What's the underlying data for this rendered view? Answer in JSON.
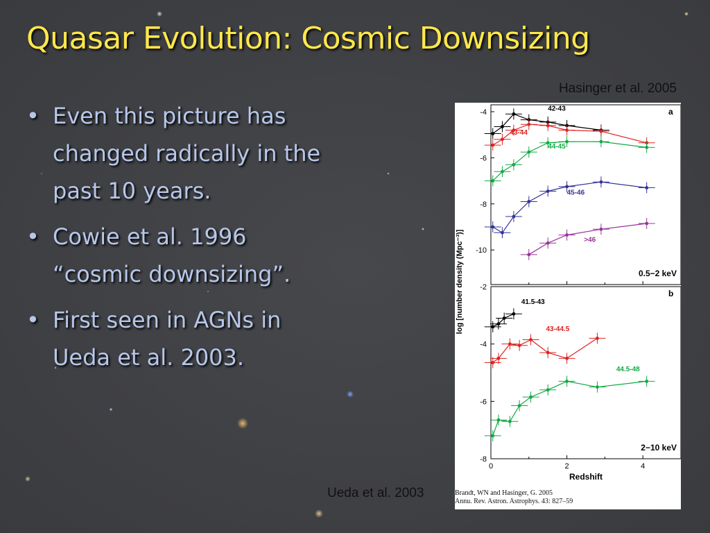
{
  "slide": {
    "title": "Quasar Evolution: Cosmic Downsizing",
    "bullets": [
      "Even this picture has changed radically in the past 10 years.",
      "Cowie et al. 1996 “cosmic downsizing”.",
      "First seen in AGNs in Ueda et al. 2003."
    ],
    "credit_top": "Hasinger et al. 2005",
    "credit_bottom": "Ueda et al. 2003",
    "citation_line1": "Brandt, WN and Hasinger, G. 2005",
    "citation_line2": "Annu. Rev. Astron. Astrophys. 43: 827–59"
  },
  "chart_data": [
    {
      "type": "line",
      "panel_label": "a",
      "band": "0.5−2 keV",
      "ylabel": "log [number density (Mpc⁻³)]",
      "xlim": [
        0,
        5
      ],
      "ylim": [
        -11.5,
        -3.7
      ],
      "y_ticks": [
        -4,
        -6,
        -8,
        -10
      ],
      "colors": [
        "#000000",
        "#dd2222",
        "#11aa44",
        "#333399",
        "#993399"
      ],
      "series": [
        {
          "name": "42-43",
          "x": [
            0.05,
            0.3,
            0.6,
            1.0,
            1.5,
            2.0,
            2.9
          ],
          "y": [
            -4.95,
            -4.65,
            -4.1,
            -4.35,
            -4.45,
            -4.6,
            -4.8
          ]
        },
        {
          "name": "43-44",
          "x": [
            0.05,
            0.3,
            0.6,
            1.0,
            1.5,
            2.0,
            2.9,
            4.1
          ],
          "y": [
            -5.45,
            -5.2,
            -4.8,
            -4.55,
            -4.6,
            -4.8,
            -4.85,
            -5.35
          ]
        },
        {
          "name": "44-45",
          "x": [
            0.05,
            0.3,
            0.6,
            1.0,
            1.5,
            2.0,
            2.9,
            4.1
          ],
          "y": [
            -7.0,
            -6.6,
            -6.3,
            -5.75,
            -5.35,
            -5.3,
            -5.3,
            -5.55
          ]
        },
        {
          "name": "45-46",
          "x": [
            0.05,
            0.3,
            0.6,
            1.0,
            1.5,
            2.0,
            2.9,
            4.1
          ],
          "y": [
            -9.0,
            -9.25,
            -8.55,
            -7.9,
            -7.45,
            -7.25,
            -7.05,
            -7.3
          ]
        },
        {
          "name": ">46",
          "x": [
            1.0,
            1.5,
            2.0,
            2.9,
            4.1
          ],
          "y": [
            -10.2,
            -9.7,
            -9.35,
            -9.1,
            -8.85
          ]
        }
      ]
    },
    {
      "type": "line",
      "panel_label": "b",
      "band": "2−10 keV",
      "xlabel": "Redshift",
      "xlim": [
        0,
        5
      ],
      "ylim": [
        -8,
        -2
      ],
      "x_ticks": [
        0,
        2,
        4
      ],
      "y_ticks": [
        -2,
        -4,
        -6,
        -8
      ],
      "colors": [
        "#000000",
        "#dd2222",
        "#11aa44"
      ],
      "series": [
        {
          "name": "41.5-43",
          "x": [
            0.05,
            0.2,
            0.35,
            0.6
          ],
          "y": [
            -3.4,
            -3.3,
            -3.1,
            -2.95
          ]
        },
        {
          "name": "43-44.5",
          "x": [
            0.05,
            0.2,
            0.5,
            0.75,
            1.05,
            1.5,
            2.0,
            2.8
          ],
          "y": [
            -4.65,
            -4.5,
            -4.0,
            -4.05,
            -3.85,
            -4.3,
            -4.5,
            -3.8
          ]
        },
        {
          "name": "44.5-48",
          "x": [
            0.05,
            0.2,
            0.5,
            0.75,
            1.05,
            1.5,
            2.0,
            2.8,
            4.1
          ],
          "y": [
            -7.2,
            -6.65,
            -6.7,
            -6.15,
            -5.85,
            -5.6,
            -5.3,
            -5.5,
            -5.3
          ]
        }
      ]
    }
  ]
}
